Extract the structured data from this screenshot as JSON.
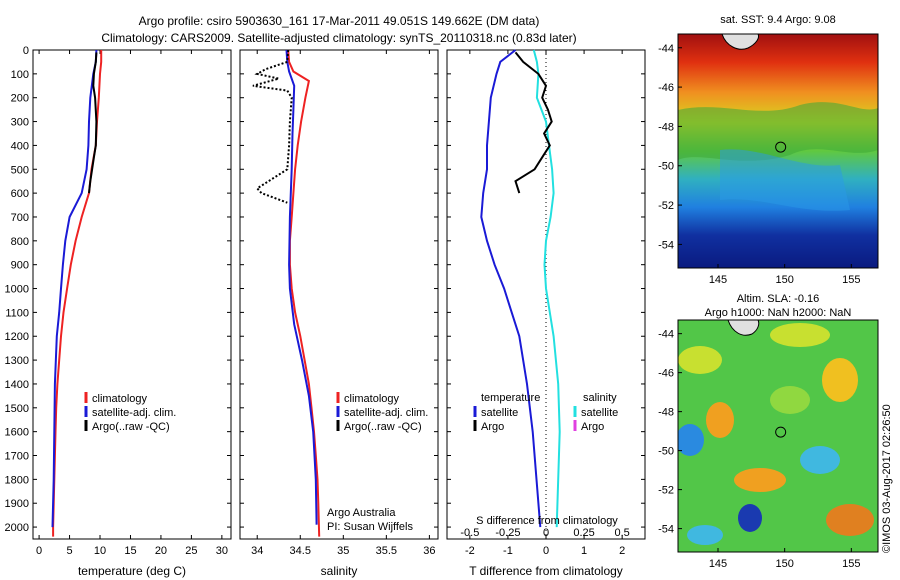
{
  "header": {
    "title_line1": "Argo profile: csiro 5903630_161 17-Mar-2011 49.051S 149.662E (DM data)",
    "title_line2": "Climatology: CARS2009. Satellite-adjusted climatology: synTS_20110318.nc (0.83d later)"
  },
  "credit": {
    "org": "Argo Australia",
    "pi": "PI: Susan Wijffels",
    "stamp": "©IMOS 03-Aug-2017 02:26:50"
  },
  "colors": {
    "climatology": "#ee2222",
    "satellite": "#1a1ad6",
    "argo": "#000000",
    "satellite_salinity": "#22e0e0",
    "argo_salinity": "#e040e0"
  },
  "chart_data": [
    {
      "type": "line",
      "name": "temperature",
      "xlabel": "temperature (deg C)",
      "ylabel": "",
      "xlim": [
        -1,
        31.5
      ],
      "ylim": [
        2050,
        0
      ],
      "xticks": [
        0,
        5,
        10,
        15,
        20,
        25,
        30
      ],
      "yticks": [
        0,
        100,
        200,
        300,
        400,
        500,
        600,
        700,
        800,
        900,
        1000,
        1100,
        1200,
        1300,
        1400,
        1500,
        1600,
        1700,
        1800,
        1900,
        2000
      ],
      "legend": [
        "climatology",
        "satellite-adj. clim.",
        "Argo(..raw -QC)"
      ],
      "legend_position": "bottom-center",
      "series": [
        {
          "name": "climatology",
          "style": "solid",
          "points": [
            [
              10.2,
              0
            ],
            [
              10.2,
              50
            ],
            [
              10.0,
              100
            ],
            [
              9.8,
              200
            ],
            [
              9.5,
              300
            ],
            [
              9.3,
              400
            ],
            [
              8.6,
              500
            ],
            [
              8.2,
              600
            ],
            [
              7.0,
              700
            ],
            [
              6.0,
              800
            ],
            [
              5.2,
              900
            ],
            [
              4.6,
              1000
            ],
            [
              4.0,
              1100
            ],
            [
              3.6,
              1200
            ],
            [
              3.3,
              1300
            ],
            [
              3.0,
              1400
            ],
            [
              2.8,
              1500
            ],
            [
              2.7,
              1600
            ],
            [
              2.6,
              1700
            ],
            [
              2.5,
              1800
            ],
            [
              2.4,
              1900
            ],
            [
              2.3,
              2000
            ],
            [
              2.3,
              2040
            ]
          ]
        },
        {
          "name": "satellite-adj. clim.",
          "style": "solid",
          "points": [
            [
              9.4,
              0
            ],
            [
              9.3,
              50
            ],
            [
              8.9,
              100
            ],
            [
              8.4,
              200
            ],
            [
              8.2,
              300
            ],
            [
              8.1,
              400
            ],
            [
              7.8,
              500
            ],
            [
              7.0,
              600
            ],
            [
              5.0,
              700
            ],
            [
              4.3,
              800
            ],
            [
              3.9,
              900
            ],
            [
              3.6,
              1000
            ],
            [
              3.3,
              1100
            ],
            [
              2.9,
              1200
            ],
            [
              2.6,
              1400
            ],
            [
              2.5,
              1600
            ],
            [
              2.4,
              1800
            ],
            [
              2.3,
              1900
            ],
            [
              2.2,
              2000
            ]
          ]
        },
        {
          "name": "Argo(..raw -QC)",
          "style": "solid",
          "points": [
            [
              9.4,
              10
            ],
            [
              9.3,
              50
            ],
            [
              9.0,
              100
            ],
            [
              8.9,
              150
            ],
            [
              9.2,
              200
            ],
            [
              9.4,
              300
            ],
            [
              9.3,
              400
            ],
            [
              9.0,
              450
            ],
            [
              8.7,
              500
            ],
            [
              8.4,
              550
            ],
            [
              8.2,
              600
            ]
          ]
        }
      ]
    },
    {
      "type": "line",
      "name": "salinity",
      "xlabel": "salinity",
      "ylabel": "",
      "xlim": [
        33.8,
        36.1
      ],
      "ylim": [
        2050,
        0
      ],
      "xticks": [
        34,
        34.5,
        35,
        35.5,
        36
      ],
      "legend": [
        "climatology",
        "satellite-adj. clim.",
        "Argo(..raw -QC)"
      ],
      "legend_position": "bottom-right",
      "series": [
        {
          "name": "climatology",
          "style": "solid",
          "points": [
            [
              34.36,
              0
            ],
            [
              34.37,
              50
            ],
            [
              34.42,
              90
            ],
            [
              34.6,
              130
            ],
            [
              34.56,
              200
            ],
            [
              34.51,
              300
            ],
            [
              34.47,
              400
            ],
            [
              34.44,
              500
            ],
            [
              34.42,
              600
            ],
            [
              34.4,
              700
            ],
            [
              34.38,
              800
            ],
            [
              34.38,
              900
            ],
            [
              34.4,
              1000
            ],
            [
              34.44,
              1100
            ],
            [
              34.5,
              1200
            ],
            [
              34.55,
              1300
            ],
            [
              34.6,
              1400
            ],
            [
              34.63,
              1500
            ],
            [
              34.66,
              1600
            ],
            [
              34.68,
              1700
            ],
            [
              34.7,
              1800
            ],
            [
              34.71,
              1900
            ],
            [
              34.72,
              2040
            ]
          ]
        },
        {
          "name": "satellite-adj. clim.",
          "style": "solid",
          "points": [
            [
              34.34,
              0
            ],
            [
              34.35,
              50
            ],
            [
              34.37,
              90
            ],
            [
              34.43,
              150
            ],
            [
              34.42,
              250
            ],
            [
              34.41,
              350
            ],
            [
              34.4,
              500
            ],
            [
              34.38,
              700
            ],
            [
              34.37,
              900
            ],
            [
              34.38,
              1000
            ],
            [
              34.43,
              1150
            ],
            [
              34.52,
              1300
            ],
            [
              34.6,
              1450
            ],
            [
              34.65,
              1600
            ],
            [
              34.68,
              1800
            ],
            [
              34.69,
              1990
            ]
          ]
        },
        {
          "name": "Argo(..raw -QC)",
          "style": "dotted",
          "points": [
            [
              34.36,
              0
            ],
            [
              34.35,
              50
            ],
            [
              34.1,
              80
            ],
            [
              34.0,
              100
            ],
            [
              34.25,
              120
            ],
            [
              33.95,
              150
            ],
            [
              34.35,
              170
            ],
            [
              34.4,
              200
            ],
            [
              34.38,
              300
            ],
            [
              34.37,
              400
            ],
            [
              34.35,
              500
            ],
            [
              34.0,
              580
            ],
            [
              34.05,
              600
            ],
            [
              34.2,
              620
            ],
            [
              34.35,
              640
            ]
          ]
        }
      ]
    },
    {
      "type": "line",
      "name": "difference",
      "xlabel": "T difference from climatology",
      "xlabel_top": "S difference from climatology",
      "xlim": [
        -2.6,
        2.6
      ],
      "ylim": [
        2050,
        0
      ],
      "xticks_T": [
        -2,
        -1,
        0,
        1,
        2
      ],
      "xticks_S": [
        -0.5,
        -0.25,
        0,
        0.25,
        0.5
      ],
      "legend_groups": [
        {
          "title": "temperature",
          "items": [
            "satellite",
            "Argo"
          ]
        },
        {
          "title": "salinity",
          "items": [
            "satellite",
            "Argo"
          ]
        }
      ],
      "series": [
        {
          "name": "T satellite",
          "style": "solid",
          "points": [
            [
              -0.8,
              0
            ],
            [
              -1.2,
              50
            ],
            [
              -1.3,
              100
            ],
            [
              -1.45,
              200
            ],
            [
              -1.5,
              300
            ],
            [
              -1.55,
              400
            ],
            [
              -1.55,
              500
            ],
            [
              -1.65,
              600
            ],
            [
              -1.7,
              700
            ],
            [
              -1.55,
              800
            ],
            [
              -1.35,
              900
            ],
            [
              -1.1,
              1000
            ],
            [
              -0.9,
              1100
            ],
            [
              -0.7,
              1200
            ],
            [
              -0.5,
              1400
            ],
            [
              -0.35,
              1600
            ],
            [
              -0.25,
              1800
            ],
            [
              -0.15,
              2000
            ]
          ]
        },
        {
          "name": "S satellite",
          "style": "solid",
          "points": [
            [
              -0.08,
              0
            ],
            [
              -0.06,
              50
            ],
            [
              -0.05,
              100
            ],
            [
              -0.06,
              200
            ],
            [
              0.0,
              300
            ],
            [
              0.02,
              400
            ],
            [
              0.04,
              500
            ],
            [
              0.05,
              600
            ],
            [
              0.03,
              700
            ],
            [
              0.0,
              800
            ],
            [
              -0.01,
              900
            ],
            [
              0.0,
              1000
            ],
            [
              0.05,
              1200
            ],
            [
              0.08,
              1400
            ],
            [
              0.09,
              1600
            ],
            [
              0.08,
              1800
            ],
            [
              0.07,
              2000
            ]
          ]
        },
        {
          "name": "T Argo",
          "style": "solid",
          "points": [
            [
              -0.8,
              10
            ],
            [
              -0.6,
              50
            ],
            [
              -0.2,
              100
            ],
            [
              0.0,
              150
            ],
            [
              -0.1,
              200
            ],
            [
              0.05,
              250
            ],
            [
              0.15,
              300
            ],
            [
              -0.05,
              350
            ],
            [
              0.1,
              400
            ],
            [
              -0.1,
              450
            ],
            [
              -0.3,
              500
            ],
            [
              -0.8,
              550
            ],
            [
              -0.7,
              600
            ]
          ]
        }
      ]
    }
  ],
  "maps": [
    {
      "name": "sst",
      "title": "sat. SST: 9.4 Argo: 9.08",
      "xticks": [
        "145",
        "150",
        "155"
      ],
      "yticks": [
        "-44",
        "-46",
        "-48",
        "-50",
        "-52",
        "-54"
      ],
      "xlim": [
        142,
        157
      ],
      "ylim": [
        -55.2,
        -43.3
      ],
      "marker": [
        149.7,
        -49.05
      ]
    },
    {
      "name": "sla",
      "title_line1": "Altim. SLA: -0.16",
      "title_line2": "Argo h1000: NaN h2000: NaN",
      "xticks": [
        "145",
        "150",
        "155"
      ],
      "yticks": [
        "-44",
        "-46",
        "-48",
        "-50",
        "-52",
        "-54"
      ],
      "xlim": [
        142,
        157
      ],
      "ylim": [
        -55.2,
        -43.3
      ],
      "marker": [
        149.7,
        -49.05
      ]
    }
  ]
}
